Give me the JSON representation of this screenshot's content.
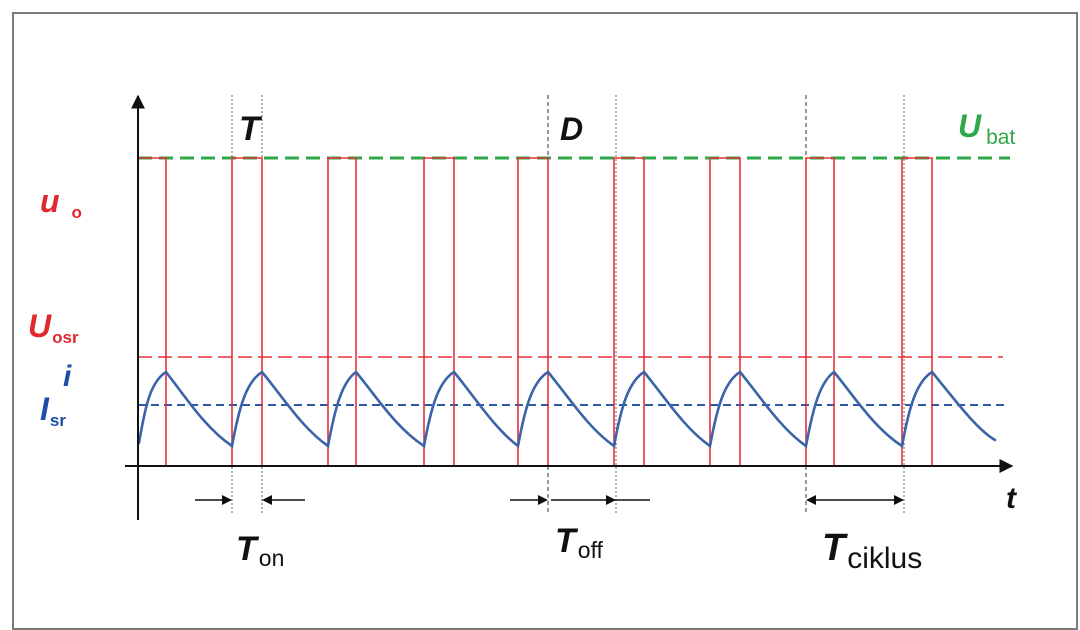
{
  "labels": {
    "axis_t": "t",
    "T": "T",
    "D": "D",
    "u_main": "u",
    "u_sub": "o",
    "U_main": "U",
    "U_sub": "osr",
    "i": "i",
    "I_main": "I",
    "I_sub": "sr",
    "Ubat_main": "U",
    "Ubat_sub": "bat",
    "Ton_main": "T",
    "Ton_sub": "on",
    "Toff_main": "T",
    "Toff_sub": "off",
    "Tc_main": "T",
    "Tc_sub": "ciklus"
  },
  "colors": {
    "axis": "#111111",
    "pulse": "#e8303a",
    "current": "#3a63a8",
    "ubat": "#2fa84a",
    "u_label": "#e0282f",
    "i_label": "#1f4ea6",
    "guide": "#555555"
  }
}
